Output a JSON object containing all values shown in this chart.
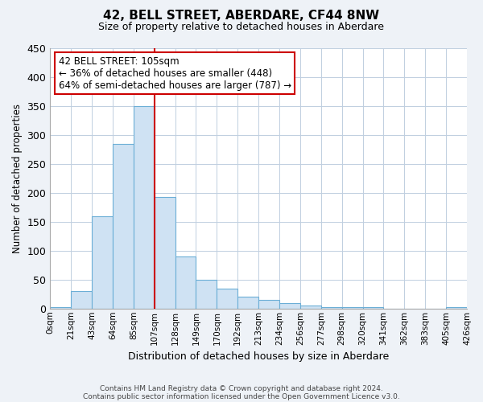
{
  "title": "42, BELL STREET, ABERDARE, CF44 8NW",
  "subtitle": "Size of property relative to detached houses in Aberdare",
  "xlabel": "Distribution of detached houses by size in Aberdare",
  "ylabel": "Number of detached properties",
  "bar_color": "#cfe2f3",
  "bar_edge_color": "#6baed6",
  "bin_labels": [
    "0sqm",
    "21sqm",
    "43sqm",
    "64sqm",
    "85sqm",
    "107sqm",
    "128sqm",
    "149sqm",
    "170sqm",
    "192sqm",
    "213sqm",
    "234sqm",
    "256sqm",
    "277sqm",
    "298sqm",
    "320sqm",
    "341sqm",
    "362sqm",
    "383sqm",
    "405sqm",
    "426sqm"
  ],
  "bin_values": [
    2,
    30,
    160,
    285,
    350,
    193,
    90,
    50,
    35,
    20,
    15,
    10,
    5,
    2,
    2,
    2,
    0,
    0,
    0,
    2
  ],
  "ylim": [
    0,
    450
  ],
  "yticks": [
    0,
    50,
    100,
    150,
    200,
    250,
    300,
    350,
    400,
    450
  ],
  "vline_bin_index": 5,
  "vline_color": "#cc0000",
  "annotation_title": "42 BELL STREET: 105sqm",
  "annotation_line1": "← 36% of detached houses are smaller (448)",
  "annotation_line2": "64% of semi-detached houses are larger (787) →",
  "annotation_box_color": "#ffffff",
  "annotation_box_edge": "#cc0000",
  "footer1": "Contains HM Land Registry data © Crown copyright and database right 2024.",
  "footer2": "Contains public sector information licensed under the Open Government Licence v3.0.",
  "bg_color": "#eef2f7",
  "plot_bg_color": "#ffffff",
  "grid_color": "#c0cfe0"
}
